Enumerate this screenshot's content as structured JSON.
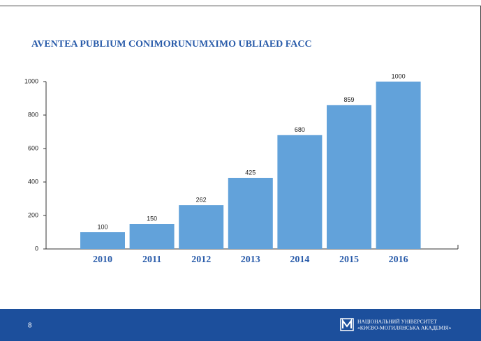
{
  "chart_data": {
    "type": "bar",
    "title": "AVENTEA PUBLIUM CONIMORUNUMXIMO UBLIAED FACC",
    "categories": [
      "2010",
      "2011",
      "2012",
      "2013",
      "2014",
      "2015",
      "2016"
    ],
    "values": [
      100,
      150,
      262,
      425,
      680,
      859,
      1000
    ],
    "color": "#62a2da",
    "ylim": [
      0,
      1000
    ],
    "yticks": [
      0,
      200,
      400,
      600,
      800,
      1000
    ],
    "grid": false
  },
  "footer": {
    "page_number": "8",
    "org_line1": "НАЦІОНАЛЬНИЙ УНІВЕРСИТЕТ",
    "org_line2": "«КИЄВО-МОГИЛЯНСЬКА АКАДЕМІЯ»"
  }
}
